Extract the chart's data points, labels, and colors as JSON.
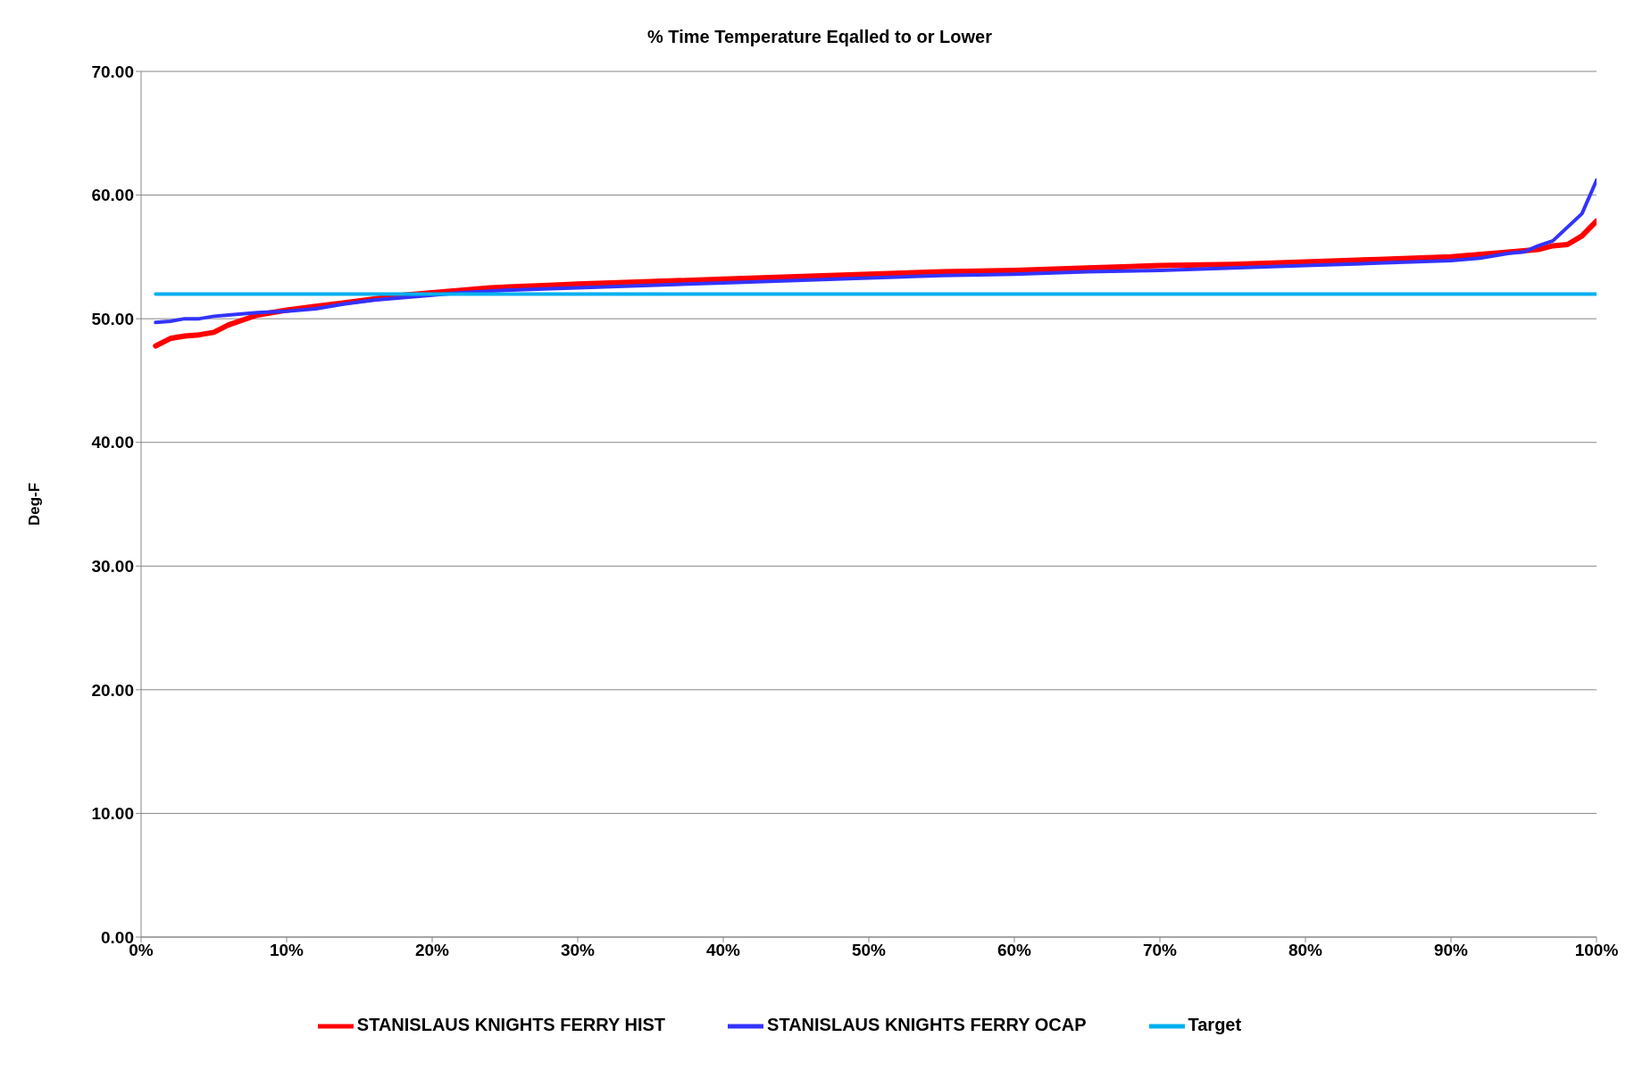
{
  "chart_data": {
    "type": "line",
    "title": "% Time Temperature Eqalled to or Lower",
    "ylabel": "Deg-F",
    "xlim": [
      0,
      100
    ],
    "xticks": [
      {
        "value": 0,
        "label": "0%"
      },
      {
        "value": 10,
        "label": "10%"
      },
      {
        "value": 20,
        "label": "20%"
      },
      {
        "value": 30,
        "label": "30%"
      },
      {
        "value": 40,
        "label": "40%"
      },
      {
        "value": 50,
        "label": "50%"
      },
      {
        "value": 60,
        "label": "60%"
      },
      {
        "value": 70,
        "label": "70%"
      },
      {
        "value": 80,
        "label": "80%"
      },
      {
        "value": 90,
        "label": "90%"
      },
      {
        "value": 100,
        "label": "100%"
      }
    ],
    "ylim": [
      0,
      70
    ],
    "yticks": [
      {
        "value": 0,
        "label": "0.00"
      },
      {
        "value": 10,
        "label": "10.00"
      },
      {
        "value": 20,
        "label": "20.00"
      },
      {
        "value": 30,
        "label": "30.00"
      },
      {
        "value": 40,
        "label": "40.00"
      },
      {
        "value": 50,
        "label": "50.00"
      },
      {
        "value": 60,
        "label": "60.00"
      },
      {
        "value": 70,
        "label": "70.00"
      }
    ],
    "grid": "y",
    "legend": "bottom",
    "marker": "none",
    "line_style": "solid",
    "series": [
      {
        "name": "STANISLAUS KNIGHTS FERRY HIST",
        "color": "#ff0000",
        "x": [
          1,
          2,
          3,
          4,
          5,
          6,
          7,
          8,
          9,
          10,
          12,
          14,
          16,
          18,
          20,
          22,
          24,
          26,
          28,
          30,
          35,
          40,
          45,
          50,
          55,
          60,
          65,
          70,
          75,
          80,
          85,
          90,
          93,
          95,
          96,
          97,
          98,
          99,
          100
        ],
        "values": [
          47.8,
          48.4,
          48.6,
          48.7,
          48.9,
          49.5,
          49.9,
          50.3,
          50.5,
          50.7,
          51.0,
          51.3,
          51.6,
          51.9,
          52.1,
          52.3,
          52.5,
          52.6,
          52.7,
          52.8,
          53.0,
          53.2,
          53.4,
          53.6,
          53.8,
          53.9,
          54.1,
          54.3,
          54.4,
          54.6,
          54.8,
          55.0,
          55.3,
          55.5,
          55.6,
          55.9,
          56.0,
          56.7,
          57.9
        ]
      },
      {
        "name": "STANISLAUS KNIGHTS FERRY OCAP",
        "color": "#3333ff",
        "x": [
          1,
          2,
          3,
          4,
          5,
          6,
          8,
          10,
          12,
          14,
          16,
          18,
          20,
          22,
          25,
          30,
          35,
          40,
          45,
          50,
          55,
          60,
          65,
          70,
          75,
          80,
          85,
          90,
          92,
          94,
          95,
          96,
          97,
          98,
          99,
          100
        ],
        "values": [
          49.7,
          49.8,
          50.0,
          50.0,
          50.2,
          50.3,
          50.5,
          50.6,
          50.8,
          51.2,
          51.5,
          51.7,
          51.9,
          52.1,
          52.3,
          52.5,
          52.7,
          52.9,
          53.1,
          53.3,
          53.5,
          53.6,
          53.8,
          53.9,
          54.1,
          54.3,
          54.5,
          54.7,
          54.9,
          55.3,
          55.4,
          55.9,
          56.3,
          57.4,
          58.5,
          61.2
        ]
      },
      {
        "name": "Target",
        "color": "#00b0f0",
        "x": [
          1,
          100
        ],
        "values": [
          52,
          52
        ]
      }
    ]
  }
}
